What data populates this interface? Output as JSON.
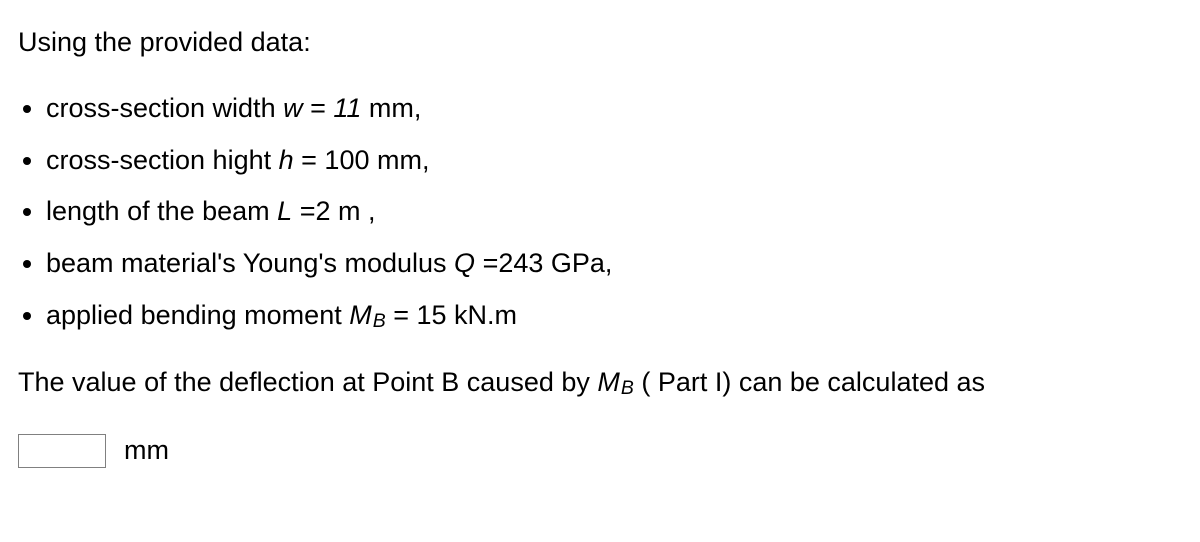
{
  "intro": "Using the provided data:",
  "items": [
    {
      "prefix": "cross-section width ",
      "symbol": "w",
      "eq": " = ",
      "value": "11",
      "unit": "  mm,"
    },
    {
      "prefix": "cross-section hight ",
      "symbol": "h",
      "eq": " = ",
      "value": "100",
      "unit": "   mm,"
    },
    {
      "prefix": "length of the beam ",
      "symbol": "L",
      "eq": " =",
      "value": "2",
      "unit": "   m ,"
    },
    {
      "prefix": "beam material's Young's modulus ",
      "symbol": "Q",
      "eq": " =",
      "value": "243",
      "unit": " GPa,"
    },
    {
      "prefix": "applied bending moment ",
      "symbol": "M",
      "sub": "B",
      "eq": " = ",
      "value": "15",
      "unit": " kN.m"
    }
  ],
  "prompt": {
    "pre": "The value of the deflection at Point B caused by ",
    "symbol": "M",
    "sub": "B",
    "post": " ( Part I) can be calculated as"
  },
  "answer": {
    "value": "",
    "unit": "mm"
  }
}
